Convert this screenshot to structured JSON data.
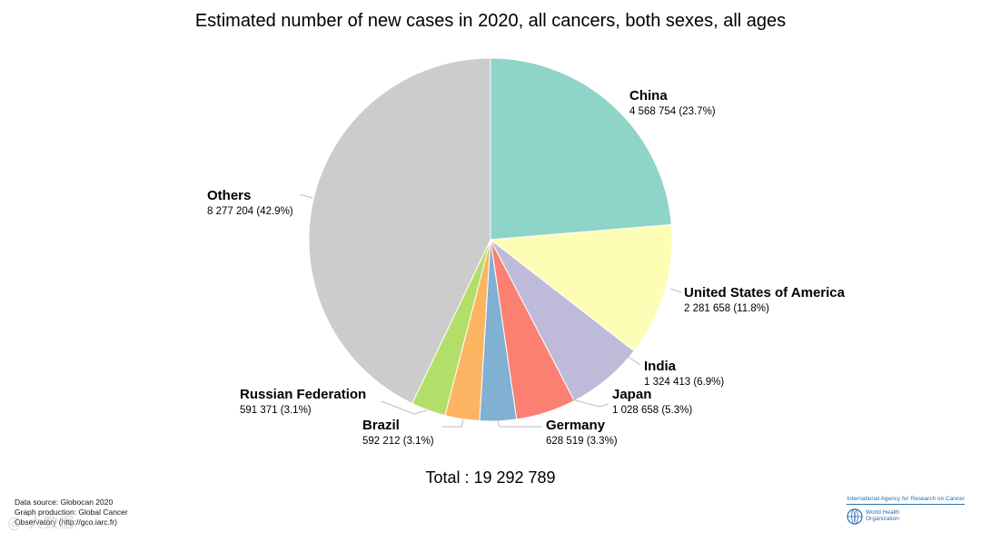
{
  "chart_data": {
    "type": "pie",
    "title": "Estimated number of new cases in 2020, all cancers, both sexes, all ages",
    "slices": [
      {
        "name": "China",
        "value": 4568754,
        "value_text": "4 568 754 (23.7%)",
        "percent": 23.7,
        "color": "#8fd4c8"
      },
      {
        "name": "United States of America",
        "value": 2281658,
        "value_text": "2 281 658 (11.8%)",
        "percent": 11.8,
        "color": "#fdfdb5"
      },
      {
        "name": "India",
        "value": 1324413,
        "value_text": "1 324 413 (6.9%)",
        "percent": 6.9,
        "color": "#bebada"
      },
      {
        "name": "Japan",
        "value": 1028658,
        "value_text": "1 028 658 (5.3%)",
        "percent": 5.3,
        "color": "#fb8072"
      },
      {
        "name": "Germany",
        "value": 628519,
        "value_text": "628 519 (3.3%)",
        "percent": 3.3,
        "color": "#80b1d3"
      },
      {
        "name": "Brazil",
        "value": 592212,
        "value_text": "592 212 (3.1%)",
        "percent": 3.1,
        "color": "#fdb462"
      },
      {
        "name": "Russian Federation",
        "value": 591371,
        "value_text": "591 371 (3.1%)",
        "percent": 3.1,
        "color": "#b3de69"
      },
      {
        "name": "Others",
        "value": 8277204,
        "value_text": "8 277 204 (42.9%)",
        "percent": 42.9,
        "color": "#cccccc"
      }
    ],
    "total_label": "Total : 19 292 789"
  },
  "footer": {
    "source_lines": [
      "Data source: Globocan 2020",
      "Graph production: Global Cancer",
      "Observatory (http://gco.iarc.fr)"
    ],
    "watermark": "@ 大数据"
  },
  "logo": {
    "iarc": "International Agency for Research on Cancer",
    "who_line1": "World Health",
    "who_line2": "Organization"
  }
}
